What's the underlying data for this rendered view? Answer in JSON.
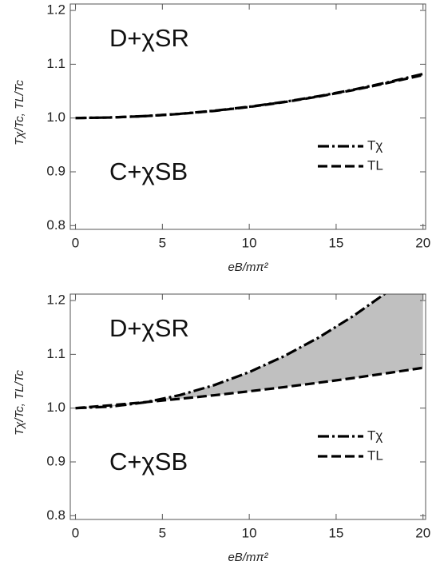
{
  "chart_data": [
    {
      "type": "line",
      "x": [
        0,
        2,
        4,
        6,
        8,
        10,
        12,
        14,
        16,
        18,
        20
      ],
      "series": [
        {
          "name": "Tχ",
          "color": "#000000",
          "dash": "dashdot",
          "values": [
            1.0,
            1.001,
            1.0036,
            1.0078,
            1.0136,
            1.021,
            1.03,
            1.0406,
            1.0528,
            1.0666,
            1.082
          ]
        },
        {
          "name": "TL",
          "color": "#000000",
          "dash": "dashed",
          "values": [
            1.0,
            1.001,
            1.0035,
            1.0076,
            1.0133,
            1.0206,
            1.0295,
            1.04,
            1.052,
            1.0655,
            1.08
          ]
        }
      ],
      "xlim": [
        -0.3,
        20.15
      ],
      "xticks": [
        0,
        5,
        10,
        15,
        20
      ],
      "ylim": [
        0.793,
        1.212
      ],
      "yticks": [
        0.8,
        0.9,
        {
          "value": 1.0,
          "label": "1.0"
        },
        1.1,
        1.2
      ],
      "xlabel": "eB/mπ²",
      "ylabel": "Tχ/Tc, TL/Tc",
      "annotations": [
        "D+χSR",
        "C+χSB"
      ],
      "legend": "right",
      "fill_between": false
    },
    {
      "type": "line",
      "x": [
        0,
        2,
        4,
        6,
        8,
        10,
        12,
        14,
        16,
        18,
        20
      ],
      "series": [
        {
          "name": "Tχ",
          "color": "#000000",
          "dash": "dashdot",
          "values": [
            1.0,
            1.0027,
            1.0107,
            1.0241,
            1.0429,
            1.067,
            1.0965,
            1.1313,
            1.1715,
            1.2171,
            1.268
          ]
        },
        {
          "name": "TL",
          "color": "#000000",
          "dash": "dashed",
          "values": [
            1.0,
            1.0052,
            1.011,
            1.0173,
            1.024,
            1.0313,
            1.039,
            1.0473,
            1.056,
            1.0653,
            1.075
          ]
        }
      ],
      "xlim": [
        -0.3,
        20.15
      ],
      "xticks": [
        0,
        5,
        10,
        15,
        20
      ],
      "ylim": [
        0.793,
        1.212
      ],
      "yticks": [
        0.8,
        0.9,
        {
          "value": 1.0,
          "label": "1.0"
        },
        1.1,
        1.2
      ],
      "xlabel": "eB/mπ²",
      "ylabel": "Tχ/Tc, TL/Tc",
      "annotations": [
        "D+χSR",
        "C+χSB"
      ],
      "legend": "right",
      "fill_between": true,
      "fill_color": "#c0c0c0"
    }
  ]
}
